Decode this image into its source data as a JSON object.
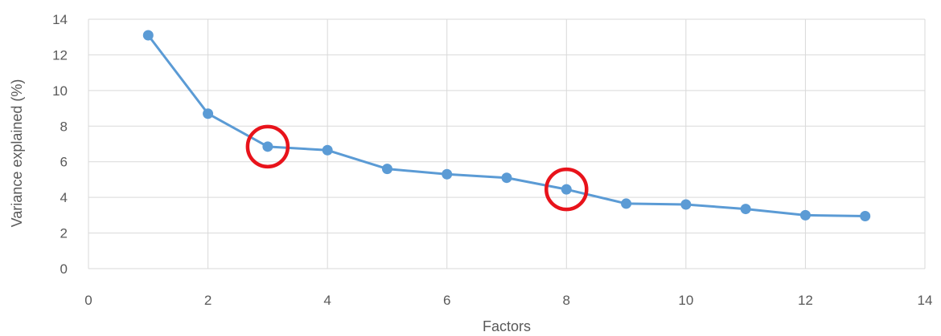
{
  "chart_data": {
    "type": "scatter",
    "xlabel": "Factors",
    "ylabel": "Variance explained (%)",
    "xlim": [
      0,
      14
    ],
    "ylim": [
      0,
      14
    ],
    "x_ticks": [
      "0",
      "2",
      "4",
      "6",
      "8",
      "10",
      "12",
      "14"
    ],
    "y_ticks": [
      "0",
      "2",
      "4",
      "6",
      "8",
      "10",
      "12",
      "14"
    ],
    "grid": true,
    "legend": "none",
    "series": [
      {
        "color": "#5B9BD5",
        "x": [
          1,
          2,
          3,
          4,
          5,
          6,
          7,
          8,
          9,
          10,
          11,
          12,
          13
        ],
        "y": [
          13.1,
          8.7,
          6.85,
          6.65,
          5.6,
          5.3,
          5.1,
          4.45,
          3.65,
          3.6,
          3.35,
          3.0,
          2.95
        ]
      }
    ],
    "highlights": [
      {
        "x": 3,
        "y": 6.85,
        "color": "#E8131B",
        "shape": "circle"
      },
      {
        "x": 8,
        "y": 4.45,
        "color": "#E8131B",
        "shape": "circle"
      }
    ],
    "colors": {
      "grid": "#D9D9D9",
      "text": "#595959"
    }
  }
}
